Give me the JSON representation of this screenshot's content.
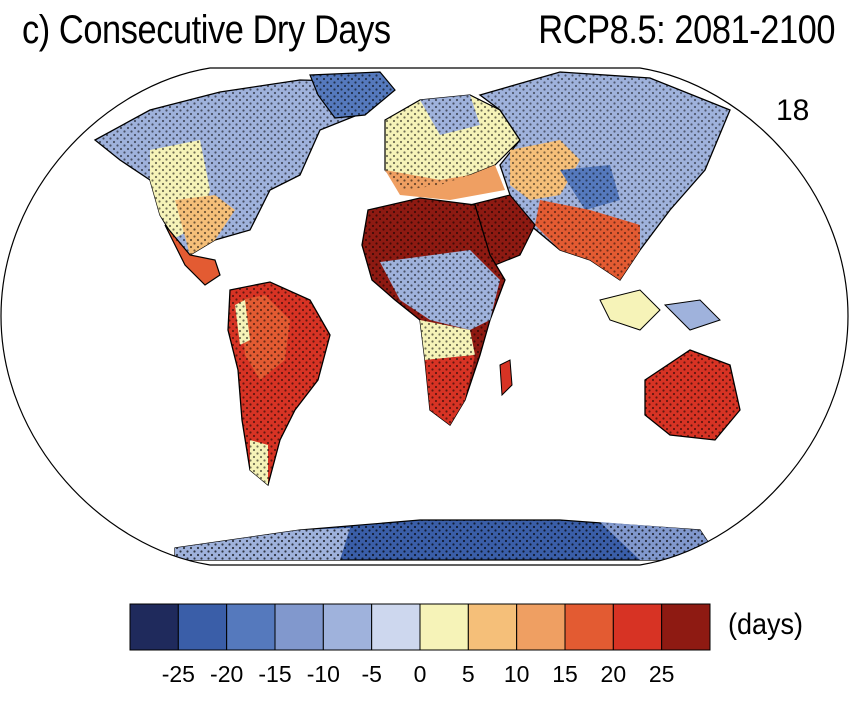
{
  "title": {
    "panel_title": "c) Consecutive Dry Days",
    "scenario": "RCP8.5: 2081-2100",
    "model_count": "18"
  },
  "colorbar": {
    "unit": "(days)",
    "tick_labels": [
      "-25",
      "-20",
      "-15",
      "-10",
      "-5",
      "0",
      "5",
      "10",
      "15",
      "20",
      "25"
    ],
    "colors": [
      "#1f2a5c",
      "#3a5ea8",
      "#5579bd",
      "#8198cd",
      "#9fb2dc",
      "#cdd7ee",
      "#f6f3b8",
      "#f5bf79",
      "#ef9f62",
      "#e35b32",
      "#d73324",
      "#8e1a12"
    ]
  },
  "map": {
    "projection": "robinson",
    "stippling": true,
    "ocean_color": "#ffffff"
  }
}
